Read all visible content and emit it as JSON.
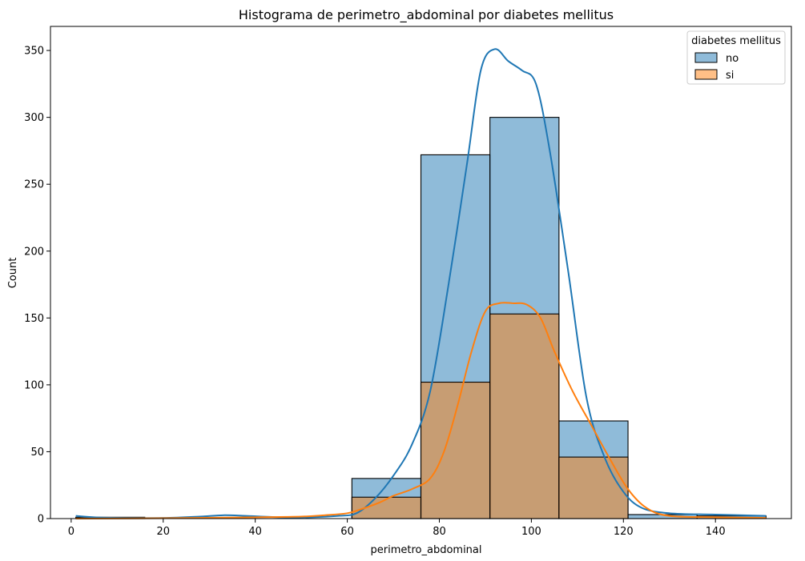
{
  "chart_data": {
    "type": "bar",
    "title": "Histograma de perimetro_abdominal por diabetes mellitus",
    "xlabel": "perimetro_abdominal",
    "ylabel": "Count",
    "xlim": [
      -4.5,
      156.5
    ],
    "ylim": [
      0,
      368
    ],
    "xticks": [
      0,
      20,
      40,
      60,
      80,
      100,
      120,
      140
    ],
    "yticks": [
      0,
      50,
      100,
      150,
      200,
      250,
      300,
      350
    ],
    "bin_edges": [
      1,
      16,
      31,
      46,
      61,
      76,
      91,
      106,
      121,
      136,
      151
    ],
    "legend": {
      "title": "diabetes mellitus",
      "position": "top-right"
    },
    "grid": false,
    "series": [
      {
        "name": "no",
        "color": "#1f77b4",
        "values": [
          1,
          0,
          0,
          0,
          30,
          272,
          300,
          73,
          3,
          2
        ],
        "kde": [
          [
            1,
            2
          ],
          [
            5,
            1
          ],
          [
            10,
            0.5
          ],
          [
            20,
            0.5
          ],
          [
            28,
            1.5
          ],
          [
            33,
            2.5
          ],
          [
            38,
            2
          ],
          [
            45,
            1
          ],
          [
            52,
            1
          ],
          [
            58,
            2
          ],
          [
            62,
            4
          ],
          [
            66,
            15
          ],
          [
            70,
            32
          ],
          [
            74,
            55
          ],
          [
            78,
            95
          ],
          [
            82,
            175
          ],
          [
            86,
            265
          ],
          [
            89,
            335
          ],
          [
            92,
            351
          ],
          [
            95,
            342
          ],
          [
            98,
            335
          ],
          [
            101,
            325
          ],
          [
            104,
            275
          ],
          [
            108,
            185
          ],
          [
            112,
            90
          ],
          [
            116,
            45
          ],
          [
            120,
            20
          ],
          [
            124,
            8
          ],
          [
            130,
            4
          ],
          [
            140,
            3
          ],
          [
            151,
            2
          ]
        ]
      },
      {
        "name": "si",
        "color": "#ff7f0e",
        "values": [
          0,
          0,
          0,
          0,
          16,
          102,
          153,
          46,
          0,
          0
        ],
        "kde": [
          [
            1,
            0
          ],
          [
            20,
            0.3
          ],
          [
            40,
            1
          ],
          [
            50,
            1.5
          ],
          [
            55,
            2.5
          ],
          [
            60,
            4
          ],
          [
            63,
            7
          ],
          [
            67,
            12
          ],
          [
            70,
            17
          ],
          [
            74,
            22
          ],
          [
            78,
            30
          ],
          [
            81,
            50
          ],
          [
            84,
            85
          ],
          [
            87,
            125
          ],
          [
            90,
            155
          ],
          [
            93,
            161
          ],
          [
            96,
            161
          ],
          [
            99,
            160
          ],
          [
            102,
            150
          ],
          [
            105,
            125
          ],
          [
            109,
            95
          ],
          [
            113,
            70
          ],
          [
            117,
            45
          ],
          [
            121,
            22
          ],
          [
            125,
            8
          ],
          [
            130,
            2
          ],
          [
            140,
            1
          ],
          [
            151,
            0.5
          ]
        ]
      }
    ]
  }
}
